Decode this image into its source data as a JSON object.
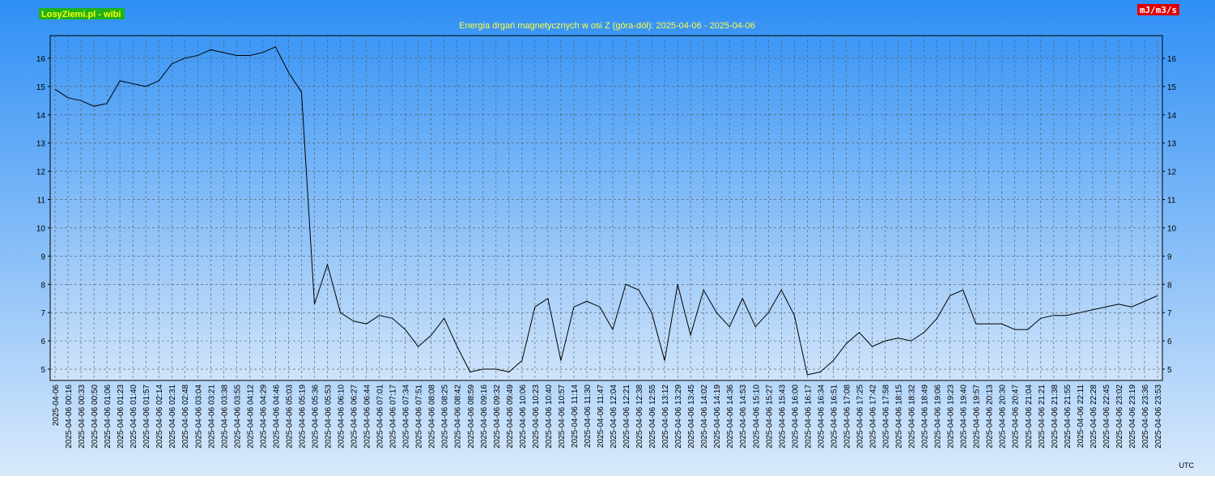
{
  "chart_data": {
    "type": "line",
    "badge": "LosyZiemi.pl - wibi",
    "title": "Energia drgań magnetycznych w osi Z (góra-dół): 2025-04-06 - 2025-04-06",
    "unit_label": "mJ/m3/s",
    "timezone": "UTC",
    "color": "#000000",
    "grid": true,
    "ylim": [
      4.6,
      16.8
    ],
    "yticks": [
      5,
      6,
      7,
      8,
      9,
      10,
      11,
      12,
      13,
      14,
      15,
      16
    ],
    "categories": [
      "2025-04-06",
      "2025-04-06 00:16",
      "2025-04-06 00:33",
      "2025-04-06 00:50",
      "2025-04-06 01:06",
      "2025-04-06 01:23",
      "2025-04-06 01:40",
      "2025-04-06 01:57",
      "2025-04-06 02:14",
      "2025-04-06 02:31",
      "2025-04-06 02:48",
      "2025-04-06 03:04",
      "2025-04-06 03:21",
      "2025-04-06 03:38",
      "2025-04-06 03:55",
      "2025-04-06 04:12",
      "2025-04-06 04:29",
      "2025-04-06 04:46",
      "2025-04-06 05:03",
      "2025-04-06 05:19",
      "2025-04-06 05:36",
      "2025-04-06 05:53",
      "2025-04-06 06:10",
      "2025-04-06 06:27",
      "2025-04-06 06:44",
      "2025-04-06 07:01",
      "2025-04-06 07:17",
      "2025-04-06 07:34",
      "2025-04-06 07:51",
      "2025-04-06 08:08",
      "2025-04-06 08:25",
      "2025-04-06 08:42",
      "2025-04-06 08:59",
      "2025-04-06 09:16",
      "2025-04-06 09:32",
      "2025-04-06 09:49",
      "2025-04-06 10:06",
      "2025-04-06 10:23",
      "2025-04-06 10:40",
      "2025-04-06 10:57",
      "2025-04-06 11:14",
      "2025-04-06 11:30",
      "2025-04-06 11:47",
      "2025-04-06 12:04",
      "2025-04-06 12:21",
      "2025-04-06 12:38",
      "2025-04-06 12:55",
      "2025-04-06 13:12",
      "2025-04-06 13:29",
      "2025-04-06 13:45",
      "2025-04-06 14:02",
      "2025-04-06 14:19",
      "2025-04-06 14:36",
      "2025-04-06 14:53",
      "2025-04-06 15:10",
      "2025-04-06 15:27",
      "2025-04-06 15:43",
      "2025-04-06 16:00",
      "2025-04-06 16:17",
      "2025-04-06 16:34",
      "2025-04-06 16:51",
      "2025-04-06 17:08",
      "2025-04-06 17:25",
      "2025-04-06 17:42",
      "2025-04-06 17:58",
      "2025-04-06 18:15",
      "2025-04-06 18:32",
      "2025-04-06 18:49",
      "2025-04-06 19:06",
      "2025-04-06 19:23",
      "2025-04-06 19:40",
      "2025-04-06 19:57",
      "2025-04-06 20:13",
      "2025-04-06 20:30",
      "2025-04-06 20:47",
      "2025-04-06 21:04",
      "2025-04-06 21:21",
      "2025-04-06 21:38",
      "2025-04-06 21:55",
      "2025-04-06 22:11",
      "2025-04-06 22:28",
      "2025-04-06 22:45",
      "2025-04-06 23:02",
      "2025-04-06 23:19",
      "2025-04-06 23:36",
      "2025-04-06 23:53"
    ],
    "values": [
      14.9,
      14.6,
      14.5,
      14.3,
      14.4,
      15.2,
      15.1,
      15.0,
      15.2,
      15.8,
      16.0,
      16.1,
      16.3,
      16.2,
      16.1,
      16.1,
      16.2,
      16.4,
      15.5,
      14.8,
      7.3,
      8.7,
      7.0,
      6.7,
      6.6,
      6.9,
      6.8,
      6.4,
      5.8,
      6.2,
      6.8,
      5.8,
      4.9,
      5.0,
      5.0,
      4.9,
      5.3,
      7.2,
      7.5,
      5.3,
      7.2,
      7.4,
      7.2,
      6.4,
      8.0,
      7.8,
      7.0,
      5.3,
      8.0,
      6.2,
      7.8,
      7.0,
      6.5,
      7.5,
      6.5,
      7.0,
      7.8,
      6.9,
      4.8,
      4.9,
      5.3,
      5.9,
      6.3,
      5.8,
      6.0,
      6.1,
      6.0,
      6.3,
      6.8,
      7.6,
      7.8,
      6.6,
      6.6,
      6.6,
      6.4,
      6.4,
      6.8,
      6.9,
      6.9,
      7.0,
      7.1,
      7.2,
      7.3,
      7.2,
      7.4,
      7.6
    ]
  }
}
